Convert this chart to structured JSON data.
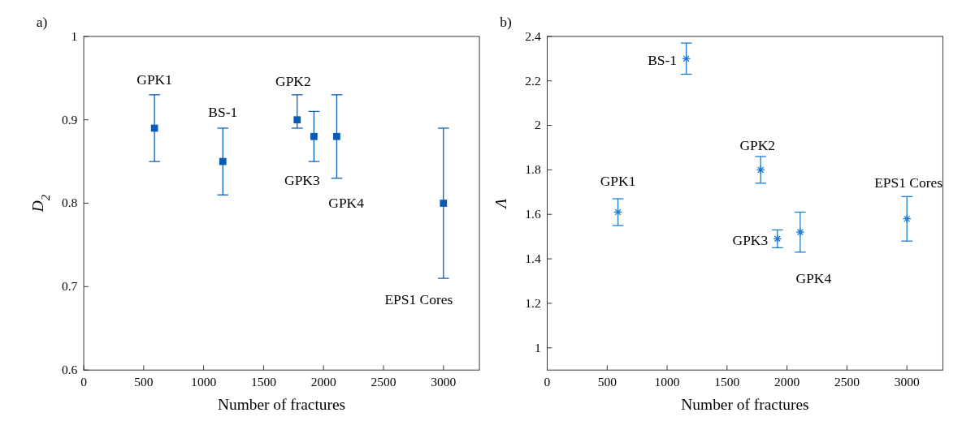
{
  "chart_data": [
    {
      "type": "scatter",
      "title": "a)",
      "xlabel": "Number of fractures",
      "ylabel": "D$_{2}$",
      "x": [
        590,
        1160,
        1780,
        1920,
        2110,
        3000
      ],
      "values": [
        0.89,
        0.85,
        0.9,
        0.88,
        0.88,
        0.8
      ],
      "errors": [
        [
          0.85,
          0.93
        ],
        [
          0.81,
          0.89
        ],
        [
          0.89,
          0.93
        ],
        [
          0.85,
          0.91
        ],
        [
          0.83,
          0.93
        ],
        [
          0.71,
          0.89
        ]
      ],
      "color": "#0a5bb8",
      "marker": "square",
      "xlim": [
        0,
        3300
      ],
      "xticks": [
        0,
        500,
        1000,
        1500,
        2000,
        2500,
        3000
      ],
      "ylim": [
        0.6,
        1
      ],
      "yticks": [
        0.6,
        0.7,
        0.8,
        0.9,
        1
      ],
      "grid": false,
      "annotations": [
        {
          "text": "GPK1",
          "x": 590,
          "y": 0.89
        },
        {
          "text": "BS-1",
          "x": 1160,
          "y": 0.85
        },
        {
          "text": "GPK2",
          "x": 1780,
          "y": 0.9
        },
        {
          "text": "GPK3",
          "x": 1920,
          "y": 0.88
        },
        "GPK4",
        "EPS1 Cores"
      ]
    },
    {
      "type": "scatter",
      "title": "b)",
      "xlabel": "Number of fractures",
      "ylabel": "Λ",
      "x": [
        590,
        1160,
        1780,
        1920,
        2110,
        3000
      ],
      "values": [
        1.61,
        2.3,
        1.8,
        1.49,
        1.52,
        1.58
      ],
      "errors": [
        [
          1.55,
          1.67
        ],
        [
          2.23,
          2.37
        ],
        [
          1.74,
          1.86
        ],
        [
          1.45,
          1.53
        ],
        [
          1.43,
          1.61
        ],
        [
          1.48,
          1.68
        ]
      ],
      "color": "#1a78cf",
      "marker": "cross",
      "xlim": [
        0,
        3300
      ],
      "xticks": [
        0,
        500,
        1000,
        1500,
        2000,
        2500,
        3000
      ],
      "ylim": [
        0.9,
        2.4
      ],
      "yticks": [
        1,
        1.2,
        1.4,
        1.6,
        1.8,
        2,
        2.2,
        2.4
      ],
      "grid": false,
      "annotations": [
        {
          "text": "GPK1",
          "x": 590,
          "y": 1.61
        },
        {
          "text": "BS-1",
          "x": 1160,
          "y": 2.3
        },
        {
          "text": "GPK2",
          "x": 1780,
          "y": 1.8
        },
        {
          "text": "GPK3",
          "x": 1920,
          "y": 1.49
        },
        {
          "text": "GPK4",
          "x": 2110,
          "y": 1.52
        },
        {
          "text": "EPS1 Cores",
          "x": 3000,
          "y": 1.58
        }
      ]
    }
  ]
}
